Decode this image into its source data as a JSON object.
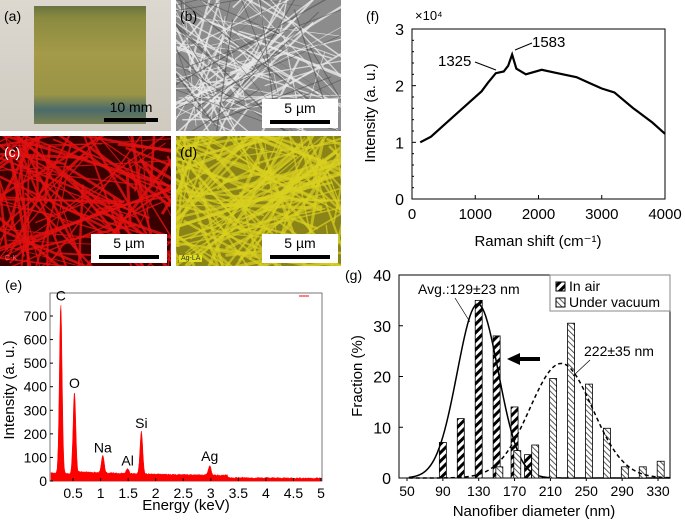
{
  "panels": {
    "a": {
      "label": "(a)",
      "scale_bar": "10 mm"
    },
    "b": {
      "label": "(b)",
      "scale_bar": "5 µm"
    },
    "c": {
      "label": "(c)",
      "scale_bar": "5 µm",
      "map_tag": "C-K",
      "color": "#e01010"
    },
    "d": {
      "label": "(d)",
      "scale_bar": "5 µm",
      "map_tag": "Ag-LA",
      "color": "#d8d020"
    },
    "e": {
      "label": "(e)"
    },
    "f": {
      "label": "(f)"
    },
    "g": {
      "label": "(g)"
    }
  },
  "chart_data": [
    {
      "panel": "e",
      "type": "area",
      "xlabel": "Energy (keV)",
      "ylabel": "Intensity (a. u.)",
      "xlim": [
        0,
        5
      ],
      "ylim": [
        0,
        800
      ],
      "xticks": [
        "0.5",
        "1",
        "1.5",
        "2",
        "2.5",
        "3",
        "3.5",
        "4",
        "4.5",
        "5"
      ],
      "yticks": [
        "0",
        "100",
        "200",
        "300",
        "400",
        "500",
        "600",
        "700"
      ],
      "color": "#ff0000",
      "peaks": [
        {
          "label": "C",
          "energy": 0.277,
          "intensity": 740
        },
        {
          "label": "O",
          "energy": 0.525,
          "intensity": 370
        },
        {
          "label": "Na",
          "energy": 1.04,
          "intensity": 95
        },
        {
          "label": "Al",
          "energy": 1.49,
          "intensity": 40
        },
        {
          "label": "Si",
          "energy": 1.74,
          "intensity": 200
        },
        {
          "label": "Ag",
          "energy": 2.98,
          "intensity": 60
        }
      ]
    },
    {
      "panel": "f",
      "type": "line",
      "multiplier": "×10⁴",
      "xlabel": "Raman shift (cm⁻¹)",
      "ylabel": "Intensity (a. u.)",
      "xlim": [
        0,
        4000
      ],
      "ylim": [
        0,
        3
      ],
      "xticks": [
        "0",
        "1000",
        "2000",
        "3000",
        "4000"
      ],
      "yticks": [
        "0",
        "1",
        "2",
        "3"
      ],
      "x": [
        130,
        300,
        500,
        800,
        1100,
        1200,
        1325,
        1450,
        1520,
        1583,
        1650,
        1800,
        2050,
        2300,
        2600,
        2800,
        3000,
        3200,
        3500,
        3800,
        4000
      ],
      "y": [
        1.0,
        1.1,
        1.3,
        1.6,
        1.9,
        2.05,
        2.22,
        2.25,
        2.35,
        2.55,
        2.3,
        2.2,
        2.28,
        2.22,
        2.15,
        2.05,
        1.95,
        1.88,
        1.6,
        1.35,
        1.15
      ],
      "annotations": [
        "1325",
        "1583"
      ]
    },
    {
      "panel": "g",
      "type": "bar",
      "xlabel": "Nanofiber diameter (nm)",
      "ylabel": "Fraction (%)",
      "xlim": [
        40,
        350
      ],
      "ylim": [
        0,
        40
      ],
      "xticks": [
        "50",
        "90",
        "130",
        "170",
        "210",
        "250",
        "290",
        "330"
      ],
      "yticks": [
        "0",
        "10",
        "20",
        "30",
        "40"
      ],
      "legend_position": "top-right",
      "series": [
        {
          "name": "In air",
          "x": [
            90,
            110,
            130,
            150,
            170,
            185
          ],
          "values": [
            7,
            11.7,
            35,
            28,
            14,
            4.6
          ],
          "fit": {
            "mean": 129,
            "sd": 23,
            "label": "Avg.:129±23 nm"
          }
        },
        {
          "name": "Under vacuum",
          "x": [
            153,
            173,
            193,
            213,
            233,
            253,
            273,
            293,
            313,
            333
          ],
          "values": [
            2.2,
            5.4,
            6.5,
            19.6,
            30.5,
            18.5,
            9.8,
            2.2,
            2.2,
            3.3
          ],
          "fit": {
            "mean": 222,
            "sd": 35,
            "label": "222±35 nm"
          }
        }
      ]
    }
  ]
}
